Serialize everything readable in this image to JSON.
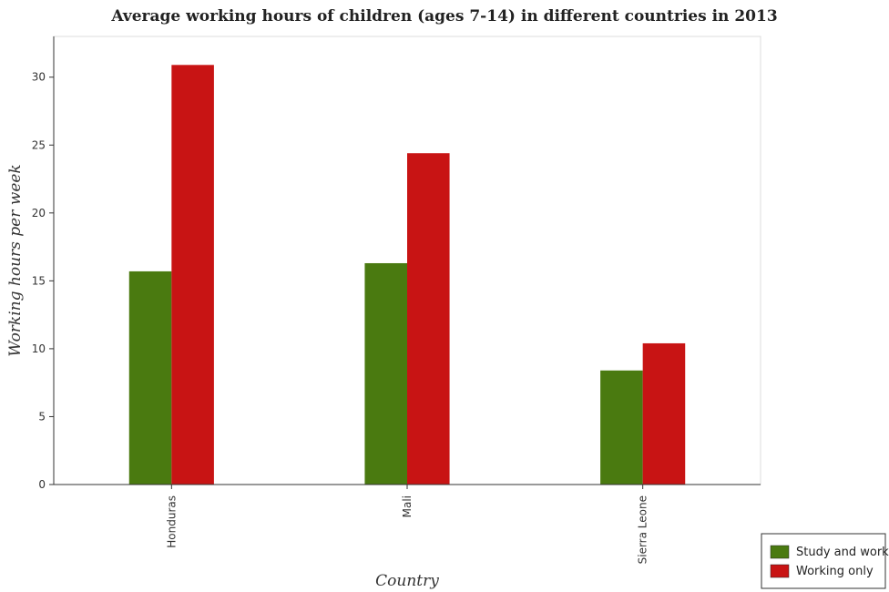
{
  "chart_data": {
    "type": "bar",
    "title": "Average working hours of children (ages 7-14) in different countries in 2013",
    "xlabel": "Country",
    "ylabel": "Working hours per week",
    "categories": [
      "Honduras",
      "Mali",
      "Sierra Leone"
    ],
    "series": [
      {
        "name": "Study and work",
        "values": [
          15.7,
          16.3,
          8.4
        ],
        "color": "#4a7a10"
      },
      {
        "name": "Working only",
        "values": [
          30.9,
          24.4,
          10.4
        ],
        "color": "#c81414"
      }
    ],
    "ylim": [
      0,
      33
    ],
    "yticks": [
      0,
      5,
      10,
      15,
      20,
      25,
      30
    ],
    "grid": false,
    "legend_position": "bottom-right"
  }
}
